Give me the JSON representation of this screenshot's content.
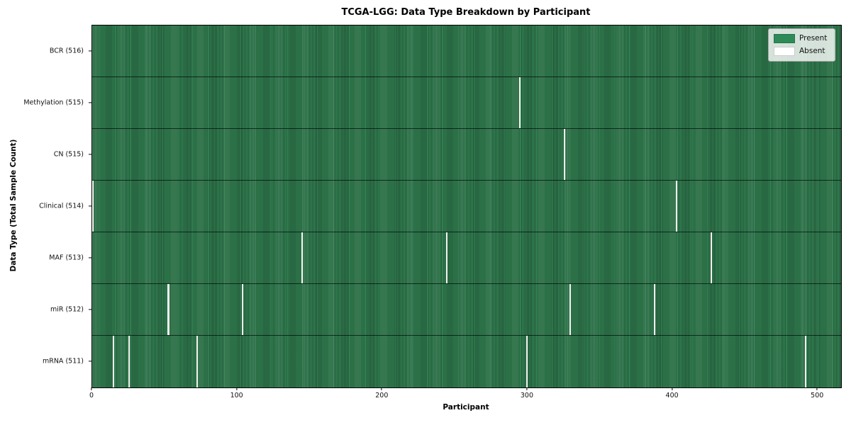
{
  "title": "TCGA-LGG: Data Type Breakdown by Participant",
  "xlabel": "Participant",
  "ylabel": "Data Type (Total Sample Count)",
  "legend_labels": {
    "present": "Present",
    "absent": "Absent"
  },
  "colors": {
    "present": "#2e8b57",
    "present_stripe_light": "#38895b",
    "present_stripe_dark": "#1f5634",
    "absent": "#f2f1ed",
    "spine": "#000000",
    "legend_bg": "rgba(255,255,255,0.8)"
  },
  "chart_data": {
    "type": "heatmap",
    "title": "TCGA-LGG: Data Type Breakdown by Participant",
    "xlabel": "Participant",
    "ylabel": "Data Type (Total Sample Count)",
    "xlim": [
      0,
      516
    ],
    "x_ticks": [
      0,
      100,
      200,
      300,
      400,
      500
    ],
    "n_participants": 516,
    "grid": false,
    "legend_entries": [
      "Present",
      "Absent"
    ],
    "legend_position": "upper right",
    "rows": [
      {
        "data_type": "BCR",
        "label": "BCR (516)",
        "present_count": 516,
        "absent_participants": []
      },
      {
        "data_type": "Methylation",
        "label": "Methylation (515)",
        "present_count": 515,
        "absent_participants": [
          294
        ]
      },
      {
        "data_type": "CN",
        "label": "CN (515)",
        "present_count": 515,
        "absent_participants": [
          325
        ]
      },
      {
        "data_type": "Clinical",
        "label": "Clinical (514)",
        "present_count": 514,
        "absent_participants": [
          0,
          402
        ]
      },
      {
        "data_type": "MAF",
        "label": "MAF (513)",
        "present_count": 513,
        "absent_participants": [
          144,
          244,
          426
        ]
      },
      {
        "data_type": "miR",
        "label": "miR (512)",
        "present_count": 512,
        "absent_participants": [
          52,
          103,
          329,
          387
        ]
      },
      {
        "data_type": "mRNA",
        "label": "mRNA (511)",
        "present_count": 511,
        "absent_participants": [
          14,
          25,
          72,
          299,
          491
        ]
      }
    ]
  }
}
